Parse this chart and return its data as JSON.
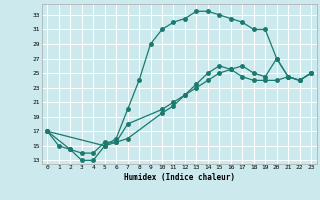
{
  "xlabel": "Humidex (Indice chaleur)",
  "bg_color": "#cce9ed",
  "grid_color": "#ffffff",
  "line_color": "#1a7a6e",
  "xlim": [
    -0.5,
    23.5
  ],
  "ylim": [
    12.5,
    34.5
  ],
  "yticks": [
    13,
    15,
    17,
    19,
    21,
    23,
    25,
    27,
    29,
    31,
    33
  ],
  "xticks": [
    0,
    1,
    2,
    3,
    4,
    5,
    6,
    7,
    8,
    9,
    10,
    11,
    12,
    13,
    14,
    15,
    16,
    17,
    18,
    19,
    20,
    21,
    22,
    23
  ],
  "curve1_x": [
    0,
    1,
    2,
    3,
    4,
    5,
    6,
    7,
    8,
    9,
    10,
    11,
    12,
    13,
    14,
    15,
    16,
    17,
    18,
    19,
    20,
    21,
    22,
    23
  ],
  "curve1_y": [
    17,
    15,
    14.5,
    13,
    13,
    15,
    16,
    20,
    24,
    29,
    31,
    32,
    32.5,
    33.5,
    33.5,
    33,
    32.5,
    32,
    31,
    31,
    27,
    24.5,
    24,
    25
  ],
  "curve2_x": [
    0,
    5,
    6,
    7,
    10,
    11,
    12,
    13,
    14,
    15,
    16,
    17,
    18,
    19,
    20,
    21,
    22,
    23
  ],
  "curve2_y": [
    17,
    15,
    15.5,
    18,
    20,
    21,
    22,
    23,
    24,
    25,
    25.5,
    26,
    25,
    24.5,
    27,
    24.5,
    24,
    25
  ],
  "curve3_x": [
    0,
    2,
    3,
    4,
    5,
    6,
    7,
    10,
    11,
    12,
    13,
    14,
    15,
    16,
    17,
    18,
    19,
    20,
    21,
    22,
    23
  ],
  "curve3_y": [
    17,
    14.5,
    14,
    14,
    15.5,
    15.5,
    16,
    19.5,
    20.5,
    22,
    23.5,
    25,
    26,
    25.5,
    24.5,
    24,
    24,
    24,
    24.5,
    24,
    25
  ]
}
